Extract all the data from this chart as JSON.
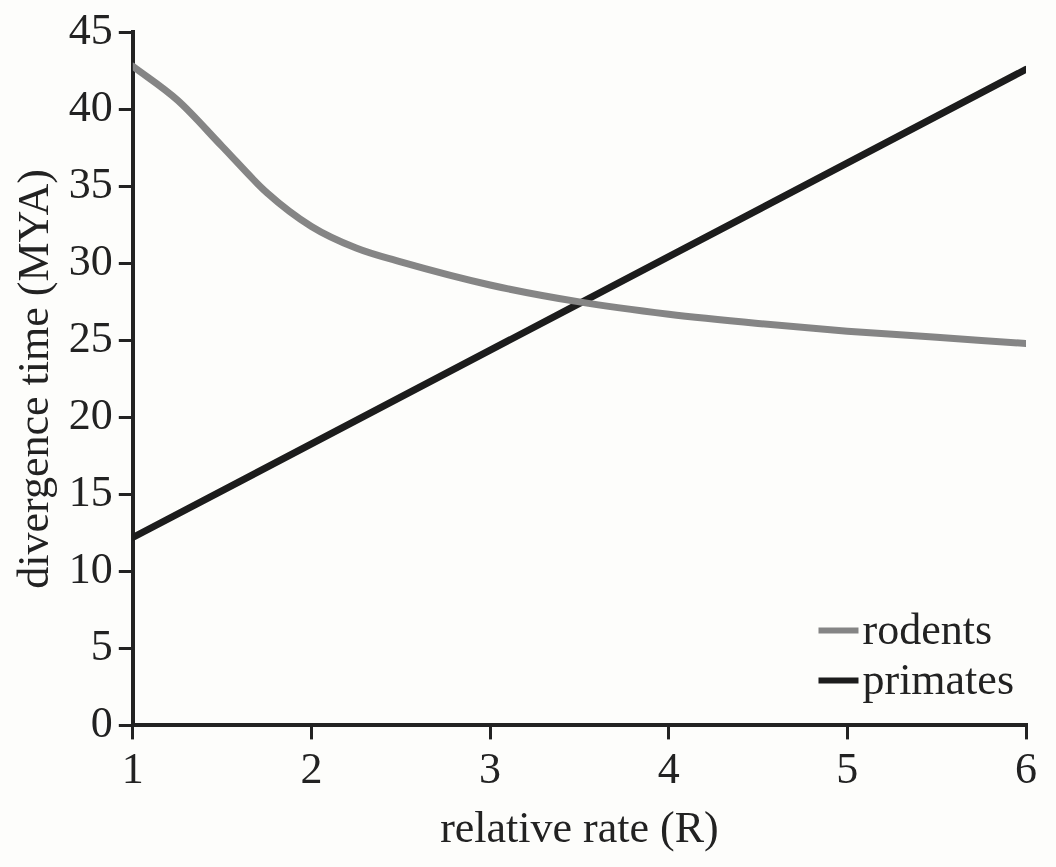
{
  "chart_data": {
    "type": "line",
    "xlabel": "relative rate (R)",
    "ylabel": "divergence time (MYA)",
    "xlim": [
      1,
      6
    ],
    "xticks": [
      1,
      2,
      3,
      4,
      5,
      6
    ],
    "ylim": [
      0,
      45
    ],
    "yticks": [
      0,
      5,
      10,
      15,
      20,
      25,
      30,
      35,
      40,
      45
    ],
    "grid": false,
    "legend": "bottom right",
    "marker": "none",
    "line_style": "solid",
    "series": [
      {
        "name": "rodents",
        "color": "#858585",
        "x": [
          1,
          1.25,
          1.5,
          1.75,
          2,
          2.25,
          2.5,
          3,
          3.5,
          4,
          4.5,
          5,
          5.5,
          6
        ],
        "values": [
          42.8,
          40.6,
          37.6,
          34.6,
          32.4,
          31,
          30.1,
          28.6,
          27.5,
          26.7,
          26.1,
          25.6,
          25.2,
          24.8
        ]
      },
      {
        "name": "primates",
        "color": "#1c1c1c",
        "x": [
          1,
          6
        ],
        "values": [
          12.2,
          42.6
        ]
      }
    ]
  }
}
